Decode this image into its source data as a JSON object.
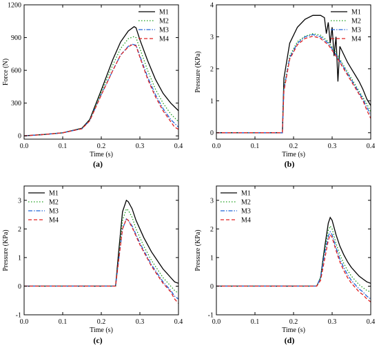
{
  "figure": {
    "captions": [
      "(a)",
      "(b)",
      "(c)",
      "(d)"
    ]
  },
  "chart_data": [
    {
      "type": "line",
      "panel": "(a)",
      "xlabel": "Time (s)",
      "ylabel": "Force (N)",
      "xlim": [
        0,
        0.4
      ],
      "ylim": [
        -30,
        1200
      ],
      "xticks": [
        "0.0",
        "0.1",
        "0.2",
        "0.3",
        "0.4"
      ],
      "yticks": [
        "0",
        "300",
        "600",
        "900",
        "1200"
      ],
      "legend": "top-right",
      "series": [
        {
          "name": "M1",
          "color": "#000000",
          "dash": "solid",
          "x": [
            0,
            0.05,
            0.1,
            0.15,
            0.17,
            0.2,
            0.23,
            0.25,
            0.27,
            0.285,
            0.29,
            0.3,
            0.32,
            0.34,
            0.36,
            0.38,
            0.4
          ],
          "y": [
            0,
            12,
            28,
            70,
            150,
            420,
            700,
            860,
            960,
            1000,
            990,
            880,
            690,
            520,
            390,
            300,
            230
          ]
        },
        {
          "name": "M2",
          "color": "#1a9e1a",
          "dash": "dotted",
          "x": [
            0,
            0.05,
            0.1,
            0.15,
            0.17,
            0.2,
            0.23,
            0.25,
            0.27,
            0.285,
            0.29,
            0.3,
            0.32,
            0.34,
            0.36,
            0.38,
            0.4
          ],
          "y": [
            0,
            12,
            28,
            68,
            145,
            400,
            650,
            800,
            890,
            910,
            900,
            800,
            600,
            430,
            300,
            200,
            130
          ]
        },
        {
          "name": "M3",
          "color": "#1f63d6",
          "dash": "dashdot",
          "x": [
            0,
            0.05,
            0.1,
            0.15,
            0.17,
            0.2,
            0.23,
            0.25,
            0.27,
            0.28,
            0.29,
            0.3,
            0.32,
            0.34,
            0.36,
            0.38,
            0.4
          ],
          "y": [
            0,
            12,
            28,
            65,
            140,
            380,
            600,
            740,
            820,
            840,
            830,
            730,
            540,
            380,
            250,
            150,
            80
          ]
        },
        {
          "name": "M4",
          "color": "#e02020",
          "dash": "dashed",
          "x": [
            0,
            0.05,
            0.1,
            0.15,
            0.17,
            0.2,
            0.23,
            0.25,
            0.27,
            0.28,
            0.29,
            0.3,
            0.32,
            0.34,
            0.36,
            0.38,
            0.39,
            0.4
          ],
          "y": [
            0,
            12,
            28,
            65,
            138,
            375,
            600,
            740,
            815,
            835,
            825,
            720,
            520,
            360,
            230,
            130,
            80,
            60
          ]
        }
      ]
    },
    {
      "type": "line",
      "panel": "(b)",
      "xlabel": "Time (s)",
      "ylabel": "Pressure (KPa)",
      "xlim": [
        0,
        0.4
      ],
      "ylim": [
        -0.2,
        4
      ],
      "xticks": [
        "0.0",
        "0.1",
        "0.2",
        "0.3",
        "0.4"
      ],
      "yticks": [
        "0",
        "1",
        "2",
        "3",
        "4"
      ],
      "legend": "top-right",
      "series": [
        {
          "name": "M1",
          "color": "#000000",
          "dash": "solid",
          "x": [
            0,
            0.171,
            0.175,
            0.19,
            0.21,
            0.23,
            0.25,
            0.27,
            0.28,
            0.285,
            0.29,
            0.295,
            0.3,
            0.305,
            0.31,
            0.315,
            0.32,
            0.33,
            0.34,
            0.35,
            0.36,
            0.37,
            0.38,
            0.39,
            0.4
          ],
          "y": [
            0,
            0,
            1.7,
            2.8,
            3.3,
            3.55,
            3.67,
            3.67,
            3.6,
            3.1,
            3.45,
            2.8,
            3.3,
            2.4,
            3.0,
            1.6,
            2.7,
            2.45,
            2.2,
            2.0,
            1.8,
            1.6,
            1.35,
            1.05,
            0.85
          ]
        },
        {
          "name": "M2",
          "color": "#1a9e1a",
          "dash": "dotted",
          "x": [
            0,
            0.171,
            0.175,
            0.19,
            0.21,
            0.23,
            0.25,
            0.27,
            0.29,
            0.31,
            0.33,
            0.35,
            0.37,
            0.38,
            0.39,
            0.4
          ],
          "y": [
            0,
            0,
            1.4,
            2.4,
            2.85,
            3.02,
            3.1,
            3.05,
            2.85,
            2.5,
            2.1,
            1.7,
            1.3,
            1.1,
            0.9,
            0.65
          ]
        },
        {
          "name": "M3",
          "color": "#1f63d6",
          "dash": "dashdot",
          "x": [
            0,
            0.171,
            0.175,
            0.19,
            0.21,
            0.23,
            0.25,
            0.27,
            0.29,
            0.31,
            0.33,
            0.35,
            0.37,
            0.38,
            0.39,
            0.4
          ],
          "y": [
            0,
            0,
            1.35,
            2.35,
            2.8,
            3.0,
            3.07,
            3.0,
            2.8,
            2.45,
            2.05,
            1.65,
            1.25,
            1.05,
            0.8,
            0.55
          ]
        },
        {
          "name": "M4",
          "color": "#e02020",
          "dash": "dashed",
          "x": [
            0,
            0.171,
            0.175,
            0.19,
            0.21,
            0.23,
            0.25,
            0.27,
            0.29,
            0.31,
            0.33,
            0.35,
            0.37,
            0.38,
            0.39,
            0.4
          ],
          "y": [
            0,
            0,
            1.3,
            2.3,
            2.75,
            2.95,
            3.02,
            2.95,
            2.75,
            2.4,
            2.0,
            1.6,
            1.2,
            1.0,
            0.7,
            0.45
          ]
        }
      ]
    },
    {
      "type": "line",
      "panel": "(c)",
      "xlabel": "Time (s)",
      "ylabel": "Pressure (KPa)",
      "xlim": [
        0,
        0.4
      ],
      "ylim": [
        -1,
        3.5
      ],
      "xticks": [
        "0.0",
        "0.1",
        "0.2",
        "0.3",
        "0.4"
      ],
      "yticks": [
        "-1",
        "0",
        "1",
        "2",
        "3"
      ],
      "legend": "top-left",
      "series": [
        {
          "name": "M1",
          "color": "#000000",
          "dash": "solid",
          "x": [
            0,
            0.237,
            0.245,
            0.255,
            0.265,
            0.27,
            0.28,
            0.29,
            0.3,
            0.31,
            0.32,
            0.33,
            0.34,
            0.35,
            0.36,
            0.37,
            0.38,
            0.39,
            0.4
          ],
          "y": [
            0,
            0,
            1.2,
            2.6,
            3.0,
            2.95,
            2.7,
            2.3,
            2.0,
            1.7,
            1.45,
            1.2,
            1.0,
            0.8,
            0.6,
            0.45,
            0.3,
            0.15,
            0.1
          ]
        },
        {
          "name": "M2",
          "color": "#1a9e1a",
          "dash": "dotted",
          "x": [
            0,
            0.237,
            0.245,
            0.255,
            0.265,
            0.27,
            0.28,
            0.29,
            0.3,
            0.31,
            0.32,
            0.33,
            0.34,
            0.35,
            0.36,
            0.37,
            0.38,
            0.39,
            0.4
          ],
          "y": [
            0,
            0,
            1.0,
            2.3,
            2.7,
            2.65,
            2.4,
            2.0,
            1.7,
            1.4,
            1.15,
            0.9,
            0.7,
            0.5,
            0.3,
            0.15,
            0.0,
            -0.15,
            -0.25
          ]
        },
        {
          "name": "M3",
          "color": "#1f63d6",
          "dash": "dashdot",
          "x": [
            0,
            0.237,
            0.245,
            0.255,
            0.265,
            0.27,
            0.28,
            0.29,
            0.3,
            0.31,
            0.32,
            0.33,
            0.34,
            0.35,
            0.36,
            0.37,
            0.38,
            0.39,
            0.4
          ],
          "y": [
            0,
            0,
            0.9,
            2.0,
            2.35,
            2.3,
            2.1,
            1.8,
            1.5,
            1.25,
            1.0,
            0.75,
            0.55,
            0.35,
            0.15,
            0.0,
            -0.15,
            -0.35,
            -0.45
          ]
        },
        {
          "name": "M4",
          "color": "#e02020",
          "dash": "dashed",
          "x": [
            0,
            0.237,
            0.245,
            0.255,
            0.265,
            0.27,
            0.28,
            0.29,
            0.3,
            0.31,
            0.32,
            0.33,
            0.34,
            0.35,
            0.36,
            0.37,
            0.38,
            0.39,
            0.4
          ],
          "y": [
            0,
            0,
            0.9,
            2.0,
            2.35,
            2.3,
            2.05,
            1.75,
            1.45,
            1.2,
            0.95,
            0.7,
            0.5,
            0.3,
            0.1,
            -0.05,
            -0.2,
            -0.45,
            -0.6
          ]
        }
      ]
    },
    {
      "type": "line",
      "panel": "(d)",
      "xlabel": "Time (s)",
      "ylabel": "Pressure (KPa)",
      "xlim": [
        0,
        0.4
      ],
      "ylim": [
        -1,
        3.5
      ],
      "xticks": [
        "0.0",
        "0.1",
        "0.2",
        "0.3",
        "0.4"
      ],
      "yticks": [
        "-1",
        "0",
        "1",
        "2",
        "3"
      ],
      "legend": "top-left",
      "series": [
        {
          "name": "M1",
          "color": "#000000",
          "dash": "solid",
          "x": [
            0,
            0.26,
            0.27,
            0.28,
            0.29,
            0.295,
            0.3,
            0.31,
            0.32,
            0.33,
            0.34,
            0.35,
            0.36,
            0.37,
            0.38,
            0.39,
            0.4
          ],
          "y": [
            0,
            0,
            0.3,
            1.3,
            2.2,
            2.4,
            2.3,
            1.8,
            1.4,
            1.1,
            0.85,
            0.65,
            0.5,
            0.35,
            0.25,
            0.15,
            0.1
          ]
        },
        {
          "name": "M2",
          "color": "#1a9e1a",
          "dash": "dotted",
          "x": [
            0,
            0.26,
            0.27,
            0.28,
            0.29,
            0.295,
            0.3,
            0.31,
            0.32,
            0.33,
            0.34,
            0.35,
            0.36,
            0.37,
            0.38,
            0.39,
            0.4
          ],
          "y": [
            0,
            0,
            0.3,
            1.2,
            1.95,
            2.1,
            2.0,
            1.5,
            1.1,
            0.8,
            0.55,
            0.35,
            0.2,
            0.05,
            -0.05,
            -0.15,
            -0.2
          ]
        },
        {
          "name": "M3",
          "color": "#1f63d6",
          "dash": "dashdot",
          "x": [
            0,
            0.26,
            0.27,
            0.28,
            0.29,
            0.295,
            0.3,
            0.31,
            0.32,
            0.33,
            0.34,
            0.35,
            0.36,
            0.37,
            0.38,
            0.39,
            0.4
          ],
          "y": [
            0,
            0,
            0.3,
            1.1,
            1.75,
            1.9,
            1.8,
            1.35,
            0.95,
            0.65,
            0.4,
            0.2,
            0.05,
            -0.1,
            -0.2,
            -0.35,
            -0.45
          ]
        },
        {
          "name": "M4",
          "color": "#e02020",
          "dash": "dashed",
          "x": [
            0,
            0.26,
            0.27,
            0.28,
            0.29,
            0.295,
            0.3,
            0.31,
            0.32,
            0.33,
            0.34,
            0.35,
            0.36,
            0.37,
            0.38,
            0.39,
            0.4
          ],
          "y": [
            0,
            0,
            0.2,
            0.9,
            1.6,
            1.8,
            1.7,
            1.25,
            0.85,
            0.55,
            0.3,
            0.1,
            -0.05,
            -0.2,
            -0.3,
            -0.45,
            -0.55
          ]
        }
      ]
    }
  ]
}
